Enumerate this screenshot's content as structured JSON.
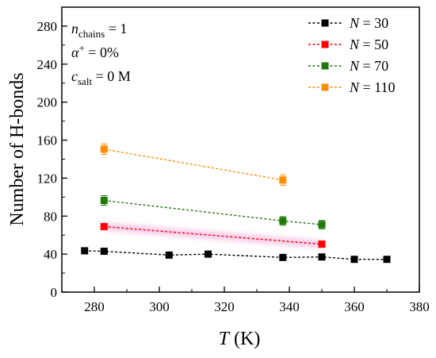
{
  "chart_data": {
    "type": "line",
    "title": "",
    "xlabel": {
      "symbol": "T",
      "unit": "(K)"
    },
    "ylabel": "Number of H-bonds",
    "xlim": [
      270,
      380
    ],
    "ylim": [
      0,
      300
    ],
    "xticks": [
      "280",
      "300",
      "320",
      "340",
      "360",
      "380"
    ],
    "yticks": [
      "0",
      "40",
      "80",
      "120",
      "160",
      "200",
      "240",
      "280"
    ],
    "grid": false,
    "legend_position": "top-right",
    "annotations": [
      {
        "sym": "n",
        "sub": "chains",
        "sup": "",
        "rest": " = 1"
      },
      {
        "sym": "α",
        "sub": "",
        "sup": "+",
        "rest": " = 0%"
      },
      {
        "sym": "c",
        "sub": "salt",
        "sup": "",
        "rest": " = 0 M"
      }
    ],
    "series": [
      {
        "name": "N = 30",
        "color": "#000000",
        "x": [
          277,
          283,
          303,
          315,
          338,
          350,
          360,
          370
        ],
        "y": [
          43.5,
          43,
          39,
          40,
          36.5,
          37,
          34.5,
          34.5
        ],
        "err": [
          1.5,
          1.5,
          1.5,
          1.5,
          1.5,
          1.5,
          1.5,
          1.5
        ]
      },
      {
        "name": "N = 50",
        "color": "#ff0000",
        "x": [
          283,
          350
        ],
        "y": [
          69,
          50.5
        ],
        "err": [
          3,
          3
        ]
      },
      {
        "name": "N = 70",
        "color": "#1f7a0a",
        "x": [
          283,
          338,
          350
        ],
        "y": [
          96.5,
          75,
          71
        ],
        "err": [
          5,
          4.5,
          4.5
        ]
      },
      {
        "name": "N = 110",
        "color": "#ff8c00",
        "x": [
          283,
          338
        ],
        "y": [
          150.5,
          118
        ],
        "err": [
          5.5,
          5.5
        ]
      }
    ]
  }
}
